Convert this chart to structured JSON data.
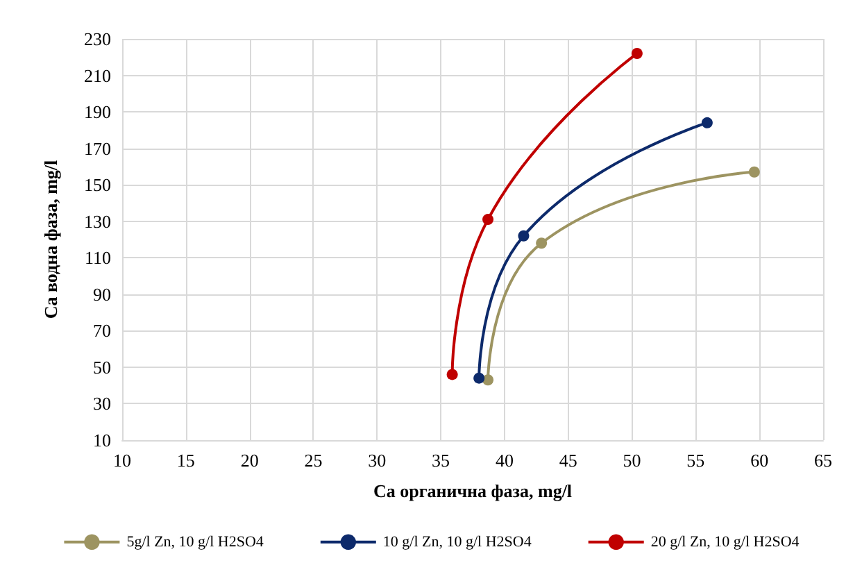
{
  "chart_data": {
    "type": "line",
    "xlabel": "Ca органична фаза, mg/l",
    "ylabel": "Ca водна фаза, mg/l",
    "series": [
      {
        "name": "5g/l Zn, 10 g/l H2SO4",
        "color": "#9d9461",
        "x": [
          38.7,
          42.9,
          59.6
        ],
        "values": [
          43,
          118,
          157
        ]
      },
      {
        "name": "10 g/l Zn, 10 g/l H2SO4",
        "color": "#0d2a6b",
        "x": [
          38.0,
          41.5,
          55.9
        ],
        "values": [
          44,
          122,
          184
        ]
      },
      {
        "name": "20 g/l Zn, 10 g/l H2SO4",
        "color": "#c00000",
        "x": [
          35.9,
          38.7,
          50.4
        ],
        "values": [
          46,
          131,
          222
        ]
      }
    ],
    "xlim": [
      10,
      65
    ],
    "xticks": [
      10,
      15,
      20,
      25,
      30,
      35,
      40,
      45,
      50,
      55,
      60,
      65
    ],
    "ylim": [
      10,
      230
    ],
    "yticks": [
      10,
      30,
      50,
      70,
      90,
      110,
      130,
      150,
      170,
      190,
      210,
      230
    ],
    "grid": true,
    "legend": "bottom",
    "marker": "circle",
    "line_style": "solid"
  }
}
